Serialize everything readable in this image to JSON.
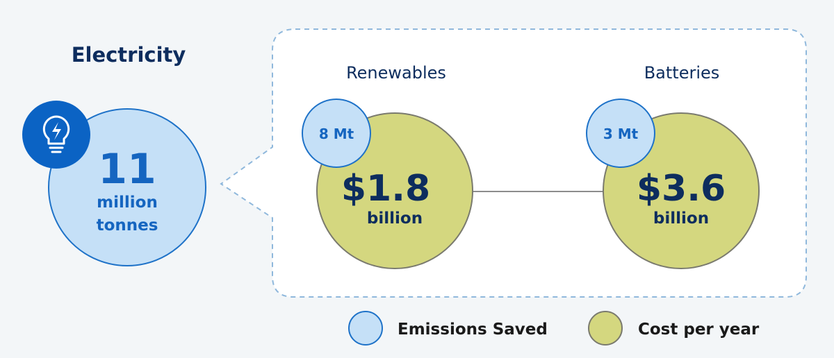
{
  "sector": {
    "title": "Electricity",
    "icon": "lightbulb-bolt-icon",
    "total_value": "11",
    "total_unit_line1": "million",
    "total_unit_line2": "tonnes"
  },
  "items": [
    {
      "label": "Renewables",
      "emissions": "8 Mt",
      "cost_value": "$1.8",
      "cost_unit": "billion"
    },
    {
      "label": "Batteries",
      "emissions": "3 Mt",
      "cost_value": "$3.6",
      "cost_unit": "billion"
    }
  ],
  "legend": {
    "emissions_label": "Emissions Saved",
    "cost_label": "Cost per year"
  },
  "colors": {
    "background": "#f3f6f8",
    "emissions_fill": "#c5e0f7",
    "emissions_stroke": "#1e72c8",
    "cost_fill": "#d4d77f",
    "cost_stroke": "#7a7a6e",
    "navy_text": "#0d2d5e",
    "blue_text": "#1565c0",
    "icon_bg": "#0b63c4",
    "dashed_border": "#8fb8dc"
  }
}
